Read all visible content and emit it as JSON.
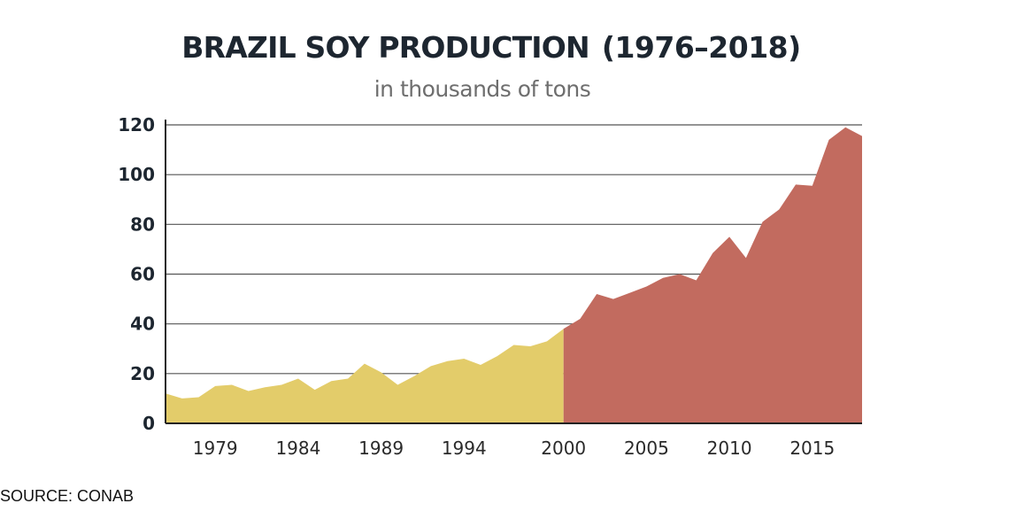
{
  "chart_data": {
    "type": "area",
    "title_main": "BRAZIL SOY PRODUCTION",
    "title_years": "(1976–2018)",
    "subtitle": "in thousands of tons",
    "source": "SOURCE: CONAB",
    "xlabel": "",
    "ylabel": "",
    "xlim": [
      1976,
      2018
    ],
    "ylim": [
      0,
      120
    ],
    "grid": true,
    "yticks": [
      0,
      20,
      40,
      60,
      80,
      100,
      120
    ],
    "xticks": [
      1979,
      1984,
      1989,
      1994,
      2000,
      2005,
      2010,
      2015
    ],
    "split_year": 2000,
    "colors": {
      "before": "#e3cc6a",
      "after": "#c26b5f",
      "grid": "#555555",
      "axis": "#222222"
    },
    "x": [
      1976,
      1977,
      1978,
      1979,
      1980,
      1981,
      1982,
      1983,
      1984,
      1985,
      1986,
      1987,
      1988,
      1989,
      1990,
      1991,
      1992,
      1993,
      1994,
      1995,
      1996,
      1997,
      1998,
      1999,
      2000,
      2001,
      2002,
      2003,
      2004,
      2005,
      2006,
      2007,
      2008,
      2009,
      2010,
      2011,
      2012,
      2013,
      2014,
      2015,
      2016,
      2017,
      2018
    ],
    "y": [
      12,
      10,
      10.5,
      15,
      15.5,
      13,
      14.5,
      15.5,
      18,
      13.5,
      17,
      18,
      24,
      20.5,
      15.5,
      19,
      23,
      25,
      26,
      23.5,
      27,
      31.5,
      31,
      33,
      38,
      42,
      52,
      50,
      52.5,
      55,
      58.5,
      60,
      57.5,
      68.5,
      75,
      66.5,
      81,
      86,
      96,
      95.5,
      114,
      119,
      115.5
    ]
  }
}
